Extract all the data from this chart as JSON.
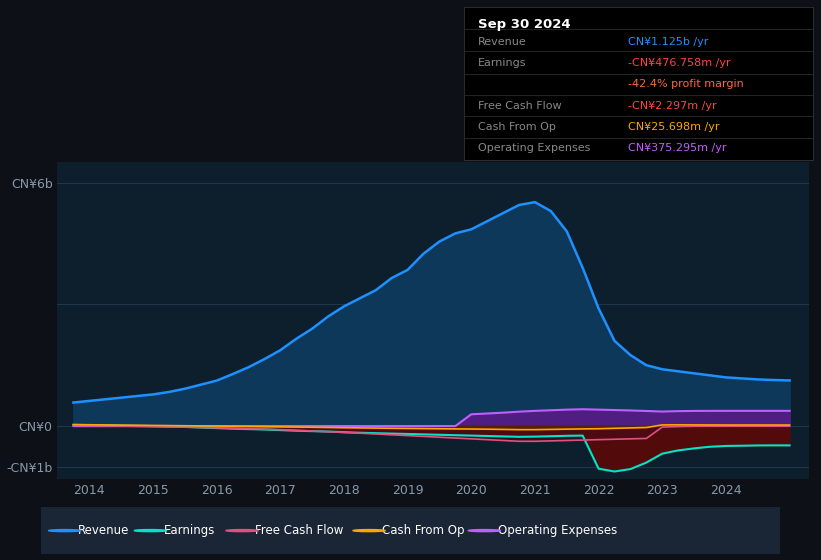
{
  "bg_color": "#0d1117",
  "plot_bg_color": "#0d1f2d",
  "grid_color": "#1e3a4a",
  "ylim": [
    -1300000000.0,
    6500000000.0
  ],
  "ytick_vals": [
    -1000000000.0,
    0,
    3000000000.0,
    6000000000.0
  ],
  "ytick_labels": [
    "-CN¥1b",
    "CN¥0",
    "",
    "CN¥6b"
  ],
  "xlim_start": 2013.5,
  "xlim_end": 2025.3,
  "xticks": [
    2014,
    2015,
    2016,
    2017,
    2018,
    2019,
    2020,
    2021,
    2022,
    2023,
    2024
  ],
  "series": {
    "revenue": {
      "color": "#1e90ff",
      "fill_color": "#0d3a5c",
      "label": "Revenue"
    },
    "earnings": {
      "color": "#00e5c8",
      "fill_color": "#00806e",
      "label": "Earnings"
    },
    "fcf": {
      "color": "#e05080",
      "fill_color": "#7a1a30",
      "label": "Free Cash Flow"
    },
    "cashfromop": {
      "color": "#ffa500",
      "fill_color": "#7a4800",
      "label": "Cash From Op"
    },
    "opex": {
      "color": "#bf5fff",
      "fill_color": "#5a1a8a",
      "label": "Operating Expenses"
    }
  },
  "legend_bg": "#1a2535",
  "info_rows": [
    {
      "label": "Revenue",
      "value": "CN¥1.125b /yr",
      "value_color": "#1e90ff"
    },
    {
      "label": "Earnings",
      "value": "-CN¥476.758m /yr",
      "value_color": "#ff4444"
    },
    {
      "label": "",
      "value": "-42.4% profit margin",
      "value_color": "#ff6644"
    },
    {
      "label": "Free Cash Flow",
      "value": "-CN¥2.297m /yr",
      "value_color": "#ff4444"
    },
    {
      "label": "Cash From Op",
      "value": "CN¥25.698m /yr",
      "value_color": "#ffa500"
    },
    {
      "label": "Operating Expenses",
      "value": "CN¥375.295m /yr",
      "value_color": "#bf5fff"
    }
  ]
}
